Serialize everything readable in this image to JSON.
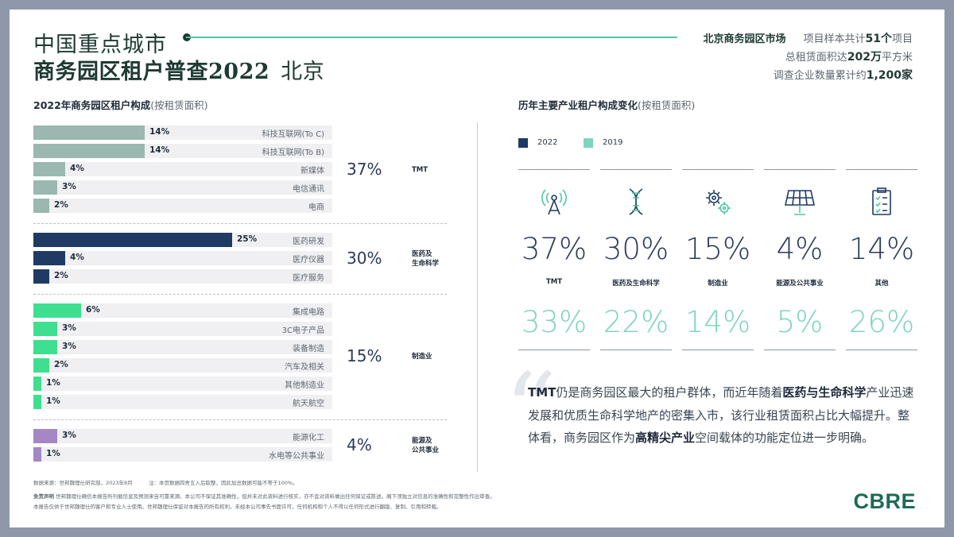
{
  "header": {
    "title_line1": "中国重点城市",
    "title_line2": "商务园区租户普查2022",
    "city": "北京",
    "market_label": "北京商务园区市场",
    "stat1_pre": "项目样本共计",
    "stat1_val": "51个",
    "stat1_post": "项目",
    "stat2_pre": "总租赁面积达",
    "stat2_val": "202万",
    "stat2_post": "平方米",
    "stat3_pre": "调查企业数量累计约",
    "stat3_val": "1,200家"
  },
  "left": {
    "title": "2022年商务园区租户构成",
    "title_note": "(按租赁面积)"
  },
  "right": {
    "title": "历年主要产业租户构成变化",
    "title_note": "(按租赁面积)",
    "legend_2022": "2022",
    "legend_2019": "2019"
  },
  "colors": {
    "tmt": "#9ab8b0",
    "med": "#1f3a63",
    "mfg": "#3ee08f",
    "energy": "#a487c4",
    "accent_2019": "#7fd4bd"
  },
  "chart_data": [
    {
      "type": "bar",
      "title": "2022年商务园区租户构成(按租赁面积)",
      "unit": "%",
      "groups": [
        {
          "name": "TMT",
          "name_line2": "",
          "total": "37%",
          "color": "#9ab8b0",
          "items": [
            {
              "label": "科技互联网(To C)",
              "value": 14,
              "text": "14%"
            },
            {
              "label": "科技互联网(To B)",
              "value": 14,
              "text": "14%"
            },
            {
              "label": "新媒体",
              "value": 4,
              "text": "4%"
            },
            {
              "label": "电信通讯",
              "value": 3,
              "text": "3%"
            },
            {
              "label": "电商",
              "value": 2,
              "text": "2%"
            }
          ]
        },
        {
          "name": "医药及",
          "name_line2": "生命科学",
          "total": "30%",
          "color": "#1f3a63",
          "items": [
            {
              "label": "医药研发",
              "value": 25,
              "text": "25%"
            },
            {
              "label": "医疗仪器",
              "value": 4,
              "text": "4%"
            },
            {
              "label": "医疗服务",
              "value": 2,
              "text": "2%"
            }
          ]
        },
        {
          "name": "制造业",
          "name_line2": "",
          "total": "15%",
          "color": "#3ee08f",
          "items": [
            {
              "label": "集成电路",
              "value": 6,
              "text": "6%"
            },
            {
              "label": "3C电子产品",
              "value": 3,
              "text": "3%"
            },
            {
              "label": "装备制造",
              "value": 3,
              "text": "3%"
            },
            {
              "label": "汽车及相关",
              "value": 2,
              "text": "2%"
            },
            {
              "label": "其他制造业",
              "value": 1,
              "text": "1%"
            },
            {
              "label": "航天航空",
              "value": 1,
              "text": "1%"
            }
          ]
        },
        {
          "name": "能源及",
          "name_line2": "公共事业",
          "total": "4%",
          "color": "#a487c4",
          "items": [
            {
              "label": "能源化工",
              "value": 3,
              "text": "3%"
            },
            {
              "label": "水电等公共事业",
              "value": 1,
              "text": "1%"
            }
          ]
        }
      ]
    },
    {
      "type": "table",
      "title": "历年主要产业租户构成变化(按租赁面积)",
      "categories": [
        "TMT",
        "医药及生命科学",
        "制造业",
        "能源及公共事业",
        "其他"
      ],
      "icons": [
        "antenna-icon",
        "dna-icon",
        "gears-icon",
        "solar-panel-icon",
        "clipboard-icon"
      ],
      "series": [
        {
          "name": "2022",
          "values": [
            37,
            30,
            15,
            4,
            14
          ],
          "text": [
            "37%",
            "30%",
            "15%",
            "4%",
            "14%"
          ]
        },
        {
          "name": "2019",
          "values": [
            33,
            22,
            14,
            5,
            26
          ],
          "text": [
            "33%",
            "22%",
            "14%",
            "5%",
            "26%"
          ]
        }
      ]
    }
  ],
  "quote": {
    "p1_bold": "TMT",
    "p2": "仍是商务园区最大的租户群体，而近年随着",
    "p3_bold": "医药与生命科学",
    "p4": "产业迅速发展和优质生命科学地产的密集入市，该行业租赁面积占比大幅提升。整体看，商务园区作为",
    "p5_bold": "高精尖产业",
    "p6": "空间载体的功能定位进一步明确。"
  },
  "footer": {
    "source": "数据来源：世邦魏理仕研究部，2023年8月",
    "note": "注：本页数据四舍五入后取整，因此加总数据可能不等于100%。",
    "disclaimer_label": "免责声明",
    "disclaimer": "世邦魏理仕确信本报告所刊载信息及预测来自可靠来源。本公司不保证其准确性，但并未对此资料进行核实，亦不会对资料做出任何保证或陈述。阁下须独立对信息的准确性和完整性作出审查。",
    "disclaimer2": "本报告仅供于世邦魏理仕的客户和专业人士使用。世邦魏理仕保留对本报告的所有权利，未经本公司事先书面许可，任何机构和个人不得以任何形式进行翻版、复制、引用和转载。",
    "logo": "CBRE"
  }
}
